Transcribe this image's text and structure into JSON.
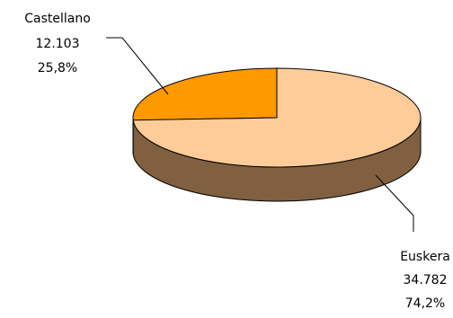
{
  "chart_data": {
    "type": "pie",
    "style": "3d",
    "legend": "none",
    "slices": [
      {
        "label": "Castellano",
        "value": 12103,
        "value_text": "12.103",
        "percent": 25.8,
        "percent_text": "25,8%",
        "color": "#ff9900",
        "side_color": "#7f4d00"
      },
      {
        "label": "Euskera",
        "value": 34782,
        "value_text": "34.782",
        "percent": 74.2,
        "percent_text": "74,2%",
        "color": "#ffcc99",
        "side_color": "#806040"
      }
    ]
  }
}
